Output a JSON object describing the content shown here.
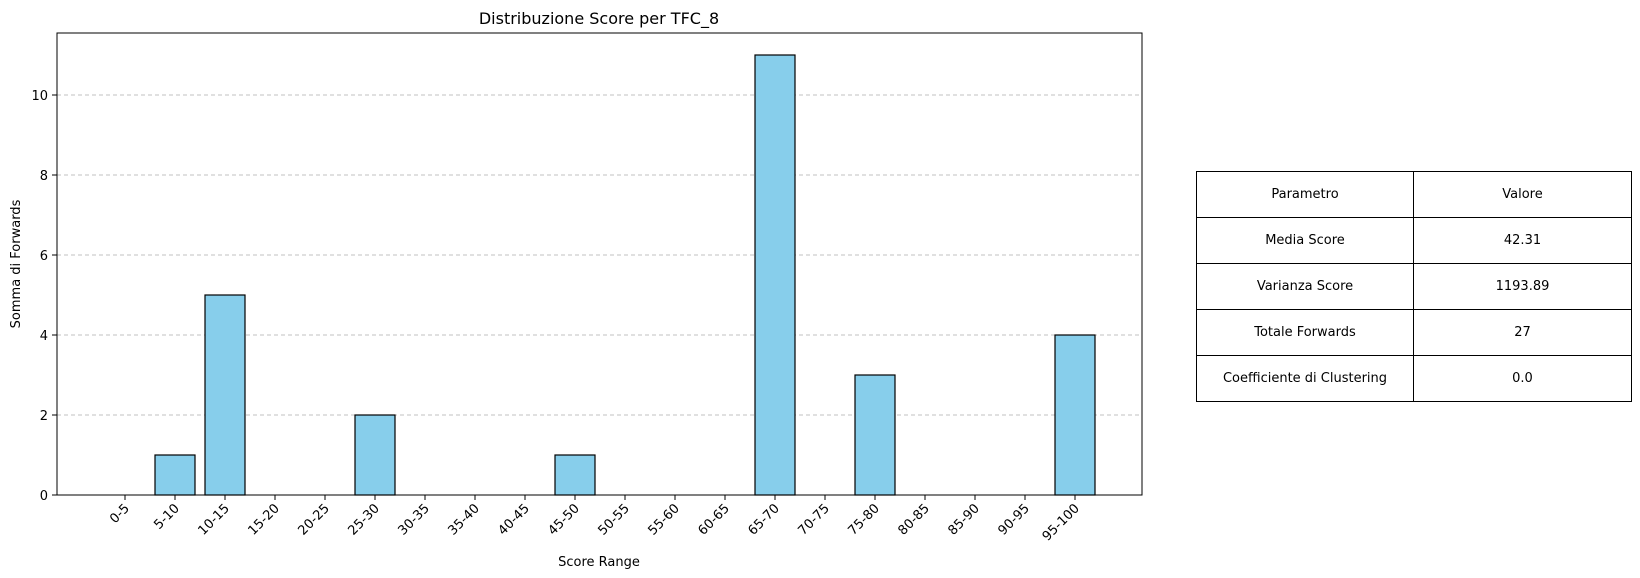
{
  "chart_data": {
    "type": "bar",
    "title": "Distribuzione Score per TFC_8",
    "xlabel": "Score Range",
    "ylabel": "Somma di Forwards",
    "categories": [
      "0-5",
      "5-10",
      "10-15",
      "15-20",
      "20-25",
      "25-30",
      "30-35",
      "35-40",
      "40-45",
      "45-50",
      "50-55",
      "55-60",
      "60-65",
      "65-70",
      "70-75",
      "75-80",
      "80-85",
      "85-90",
      "90-95",
      "95-100"
    ],
    "values": [
      0,
      1,
      5,
      0,
      0,
      2,
      0,
      0,
      0,
      1,
      0,
      0,
      0,
      11,
      0,
      3,
      0,
      0,
      0,
      4
    ],
    "ylim": [
      0,
      11.55
    ],
    "yticks": [
      0,
      2,
      4,
      6,
      8,
      10
    ],
    "grid": "y-dashed",
    "bar_color": "#87ceeb",
    "edge_color": "#000000",
    "grid_color": "#c0c0c0"
  },
  "table": {
    "rows": [
      [
        "Parametro",
        "Valore"
      ],
      [
        "Media Score",
        "42.31"
      ],
      [
        "Varianza Score",
        "1193.89"
      ],
      [
        "Totale Forwards",
        "27"
      ],
      [
        "Coefficiente di Clustering",
        "0.0"
      ]
    ]
  }
}
